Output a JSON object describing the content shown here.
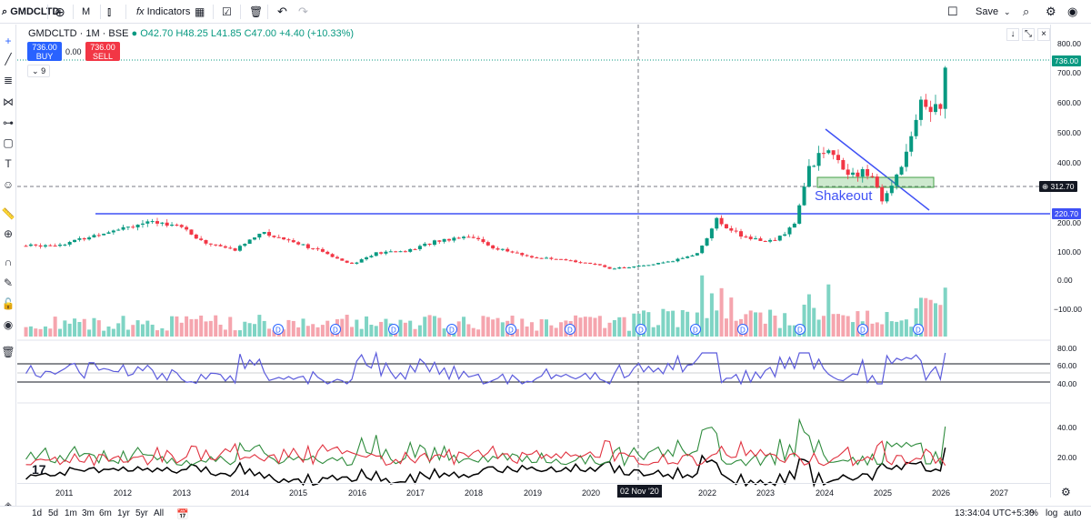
{
  "toolbar": {
    "symbol": "GMDCLTD",
    "interval": "M",
    "indicators_label": "Indicators",
    "save_label": "Save"
  },
  "legend": {
    "title": "GMDCLTD · 1M · BSE",
    "ohlc": "O42.70 H48.25 L41.85 C47.00 +4.40 (+10.33%)"
  },
  "trade": {
    "buy_price": "736.00",
    "buy_label": "BUY",
    "sell_price": "736.00",
    "sell_label": "SELL",
    "spread": "0.00",
    "collapse": "9"
  },
  "price_axis": {
    "ticks": [
      "800.00",
      "700.00",
      "600.00",
      "500.00",
      "400.00",
      "300.00",
      "200.00",
      "100.00",
      "0.00",
      "−100.00"
    ],
    "last_price": "736.00",
    "crosshair_price": "312.70",
    "line_price": "220.70"
  },
  "rsi_axis": {
    "ticks": [
      "80.00",
      "60.00",
      "40.00"
    ]
  },
  "adx_axis": {
    "ticks": [
      "40.00",
      "20.00"
    ]
  },
  "annotation": {
    "text": "Shakeout"
  },
  "time_axis": {
    "years": [
      "2011",
      "2012",
      "2013",
      "2014",
      "2015",
      "2016",
      "2017",
      "2018",
      "2019",
      "2020",
      "2022",
      "2023",
      "2024",
      "2025",
      "2026",
      "2027"
    ],
    "crosshair_date": "02 Nov '20"
  },
  "dividend_marker": "D",
  "bottom": {
    "ranges": [
      "1d",
      "5d",
      "1m",
      "3m",
      "6m",
      "1yr",
      "5yr",
      "All"
    ],
    "clock": "13:34:04 UTC+5:30",
    "percent": "%",
    "log": "log",
    "auto": "auto"
  },
  "chart_data": {
    "type": "candlestick",
    "interval": "monthly",
    "x_range": [
      "2010",
      "2026"
    ],
    "price": [
      {
        "date": "2010-06",
        "close": 125
      },
      {
        "date": "2011-01",
        "close": 130
      },
      {
        "date": "2011-06",
        "close": 150
      },
      {
        "date": "2012-01",
        "close": 185
      },
      {
        "date": "2012-06",
        "close": 200
      },
      {
        "date": "2013-01",
        "close": 200
      },
      {
        "date": "2013-06",
        "close": 140
      },
      {
        "date": "2014-01",
        "close": 110
      },
      {
        "date": "2014-06",
        "close": 170
      },
      {
        "date": "2015-01",
        "close": 140
      },
      {
        "date": "2015-06",
        "close": 110
      },
      {
        "date": "2016-01",
        "close": 65
      },
      {
        "date": "2016-06",
        "close": 100
      },
      {
        "date": "2017-01",
        "close": 110
      },
      {
        "date": "2017-06",
        "close": 140
      },
      {
        "date": "2018-01",
        "close": 160
      },
      {
        "date": "2018-06",
        "close": 120
      },
      {
        "date": "2019-01",
        "close": 90
      },
      {
        "date": "2019-06",
        "close": 80
      },
      {
        "date": "2020-01",
        "close": 70
      },
      {
        "date": "2020-06",
        "close": 50
      },
      {
        "date": "2020-11",
        "close": 55
      },
      {
        "date": "2021-06",
        "close": 70
      },
      {
        "date": "2021-12",
        "close": 100
      },
      {
        "date": "2022-04",
        "close": 210
      },
      {
        "date": "2022-10",
        "close": 150
      },
      {
        "date": "2023-04",
        "close": 140
      },
      {
        "date": "2023-08",
        "close": 200
      },
      {
        "date": "2023-11",
        "close": 380
      },
      {
        "date": "2024-02",
        "close": 450
      },
      {
        "date": "2024-06",
        "close": 380
      },
      {
        "date": "2024-12",
        "close": 360
      },
      {
        "date": "2025-02",
        "close": 270
      },
      {
        "date": "2025-06",
        "close": 400
      },
      {
        "date": "2025-10",
        "close": 600
      },
      {
        "date": "2026-02",
        "close": 580
      },
      {
        "date": "2026-03",
        "close": 736
      }
    ],
    "levels": {
      "horizontal_line": 220.7,
      "crosshair": 312.7,
      "last": 736.0
    },
    "ylim": [
      -150,
      800
    ]
  }
}
